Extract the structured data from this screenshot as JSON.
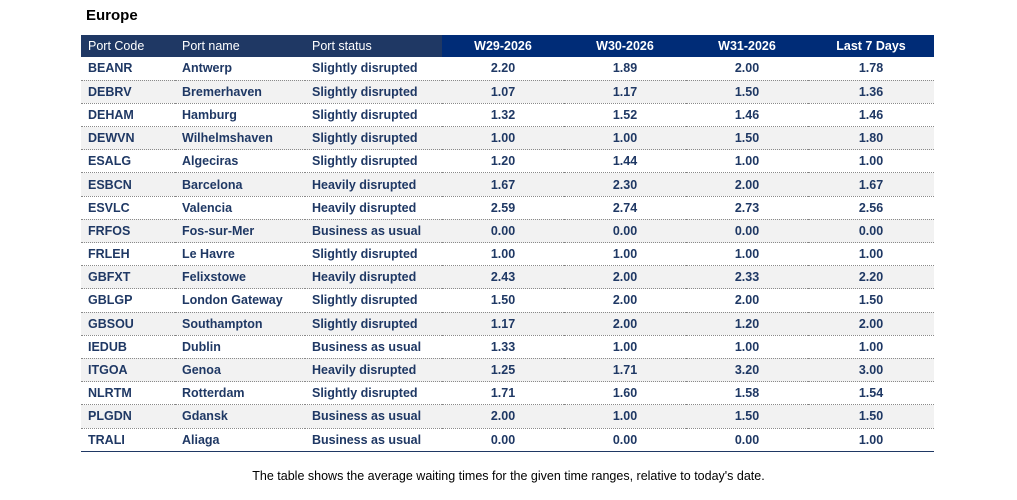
{
  "region_title": "Europe",
  "headers": {
    "port_code": "Port Code",
    "port_name": "Port name",
    "port_status": "Port status",
    "w29": "W29-2026",
    "w30": "W30-2026",
    "w31": "W31-2026",
    "last7": "Last 7 Days"
  },
  "rows": [
    {
      "code": "BEANR",
      "name": "Antwerp",
      "status": "Slightly disrupted",
      "w29": "2.20",
      "w30": "1.89",
      "w31": "2.00",
      "last7": "1.78"
    },
    {
      "code": "DEBRV",
      "name": "Bremerhaven",
      "status": "Slightly disrupted",
      "w29": "1.07",
      "w30": "1.17",
      "w31": "1.50",
      "last7": "1.36"
    },
    {
      "code": "DEHAM",
      "name": "Hamburg",
      "status": "Slightly disrupted",
      "w29": "1.32",
      "w30": "1.52",
      "w31": "1.46",
      "last7": "1.46"
    },
    {
      "code": "DEWVN",
      "name": "Wilhelmshaven",
      "status": "Slightly disrupted",
      "w29": "1.00",
      "w30": "1.00",
      "w31": "1.50",
      "last7": "1.80"
    },
    {
      "code": "ESALG",
      "name": "Algeciras",
      "status": "Slightly disrupted",
      "w29": "1.20",
      "w30": "1.44",
      "w31": "1.00",
      "last7": "1.00"
    },
    {
      "code": "ESBCN",
      "name": "Barcelona",
      "status": "Heavily disrupted",
      "w29": "1.67",
      "w30": "2.30",
      "w31": "2.00",
      "last7": "1.67"
    },
    {
      "code": "ESVLC",
      "name": "Valencia",
      "status": "Heavily disrupted",
      "w29": "2.59",
      "w30": "2.74",
      "w31": "2.73",
      "last7": "2.56"
    },
    {
      "code": "FRFOS",
      "name": "Fos-sur-Mer",
      "status": "Business as usual",
      "w29": "0.00",
      "w30": "0.00",
      "w31": "0.00",
      "last7": "0.00"
    },
    {
      "code": "FRLEH",
      "name": "Le Havre",
      "status": "Slightly disrupted",
      "w29": "1.00",
      "w30": "1.00",
      "w31": "1.00",
      "last7": "1.00"
    },
    {
      "code": "GBFXT",
      "name": "Felixstowe",
      "status": "Heavily disrupted",
      "w29": "2.43",
      "w30": "2.00",
      "w31": "2.33",
      "last7": "2.20"
    },
    {
      "code": "GBLGP",
      "name": "London Gateway",
      "status": "Slightly disrupted",
      "w29": "1.50",
      "w30": "2.00",
      "w31": "2.00",
      "last7": "1.50"
    },
    {
      "code": "GBSOU",
      "name": "Southampton",
      "status": "Slightly disrupted",
      "w29": "1.17",
      "w30": "2.00",
      "w31": "1.20",
      "last7": "2.00"
    },
    {
      "code": "IEDUB",
      "name": "Dublin",
      "status": "Business as usual",
      "w29": "1.33",
      "w30": "1.00",
      "w31": "1.00",
      "last7": "1.00"
    },
    {
      "code": "ITGOA",
      "name": "Genoa",
      "status": "Heavily disrupted",
      "w29": "1.25",
      "w30": "1.71",
      "w31": "3.20",
      "last7": "3.00"
    },
    {
      "code": "NLRTM",
      "name": "Rotterdam",
      "status": "Slightly disrupted",
      "w29": "1.71",
      "w30": "1.60",
      "w31": "1.58",
      "last7": "1.54"
    },
    {
      "code": "PLGDN",
      "name": "Gdansk",
      "status": "Business as usual",
      "w29": "2.00",
      "w30": "1.00",
      "w31": "1.50",
      "last7": "1.50"
    },
    {
      "code": "TRALI",
      "name": "Aliaga",
      "status": "Business as usual",
      "w29": "0.00",
      "w30": "0.00",
      "w31": "0.00",
      "last7": "1.00"
    }
  ],
  "caption": "The table shows the average waiting times for the given time ranges, relative to today's date.",
  "colors": {
    "header_text_bg": "#1f3864",
    "header_num_bg": "#002c77",
    "body_text": "#1f3864",
    "zebra": "#f2f2f2"
  }
}
